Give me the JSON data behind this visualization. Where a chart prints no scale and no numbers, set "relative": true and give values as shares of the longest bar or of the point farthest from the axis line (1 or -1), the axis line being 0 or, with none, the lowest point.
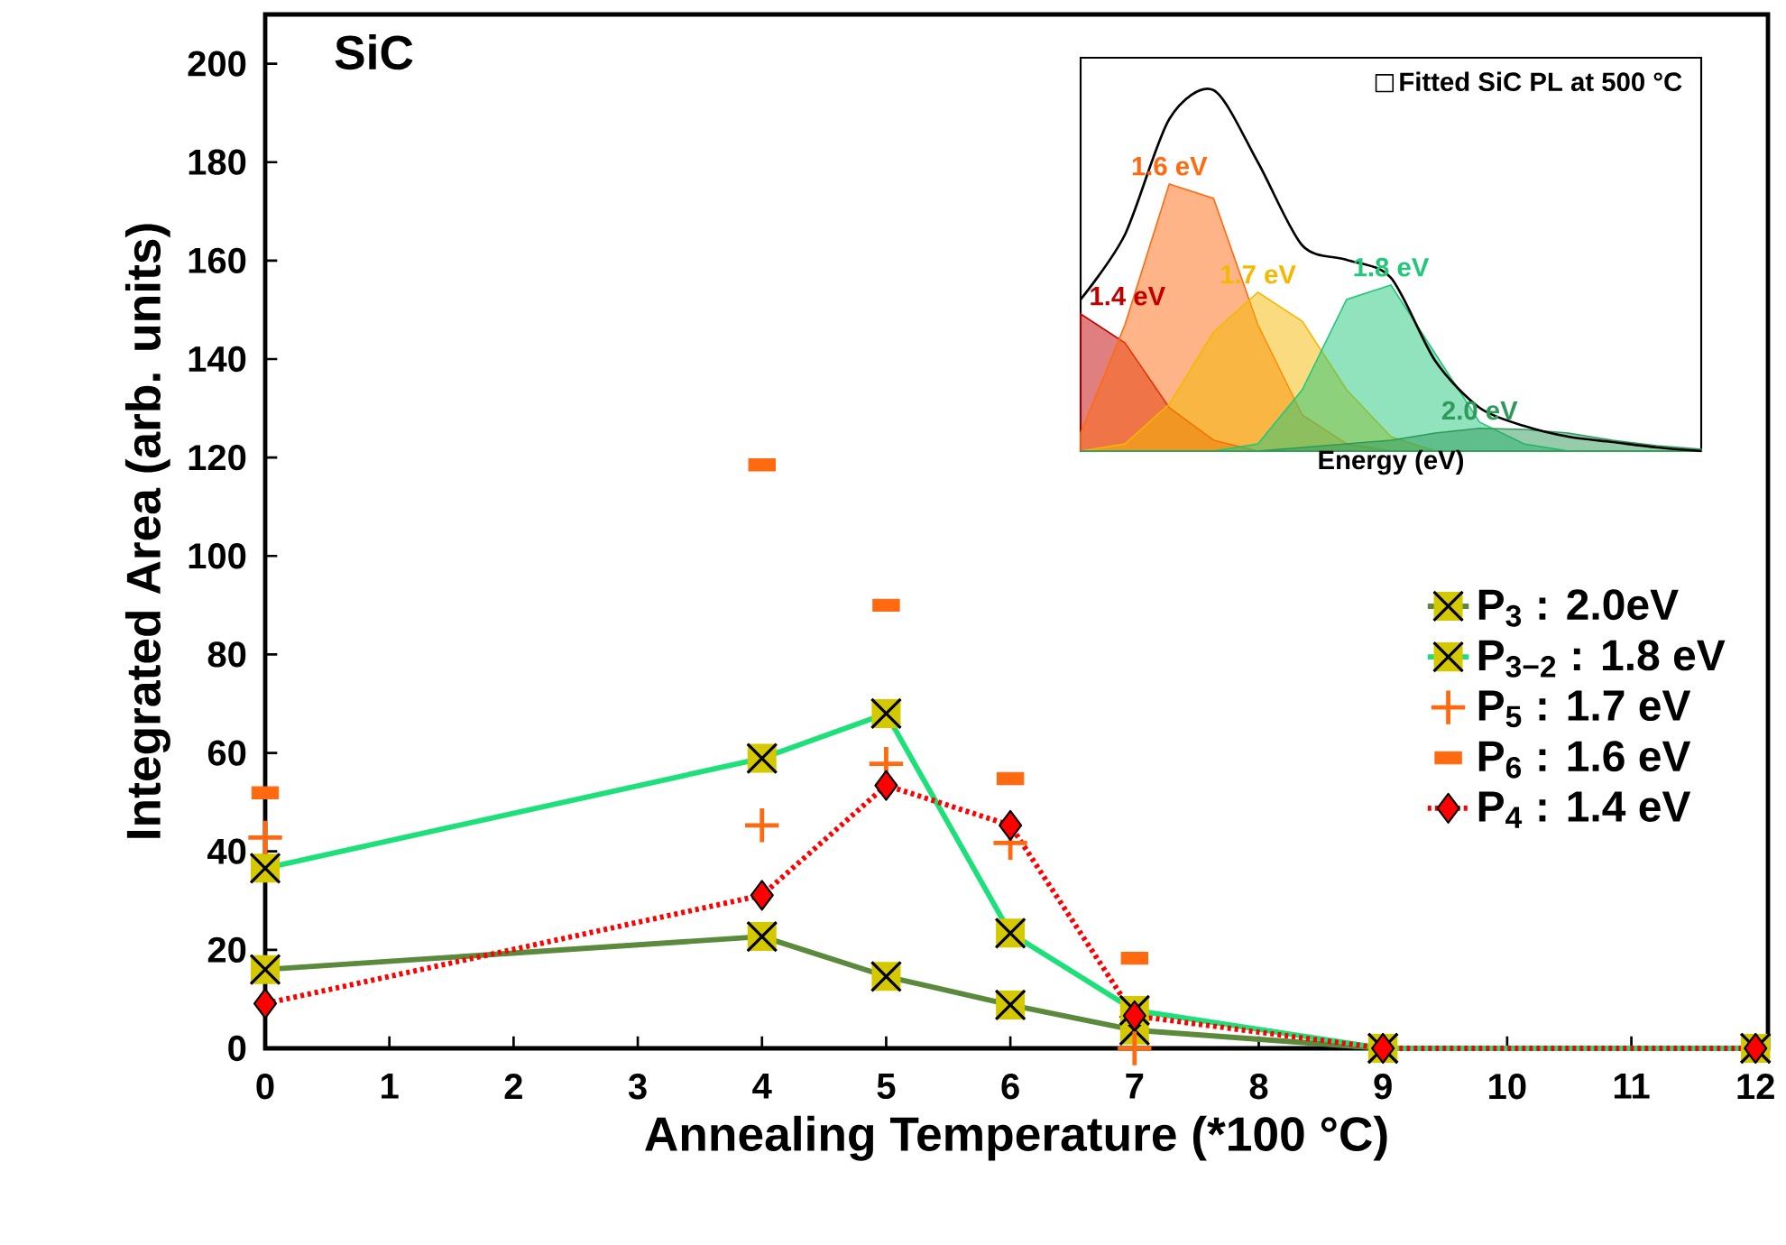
{
  "chart_data": [
    {
      "type": "line",
      "title": "SiC",
      "xlabel": "Annealing Temperature (*100 °C)",
      "ylabel": "Integrated Area (arb. units)",
      "x": [
        0,
        4,
        5,
        6,
        7,
        9,
        12
      ],
      "xlim": [
        0,
        12.1
      ],
      "xticks": [
        0,
        1,
        2,
        3,
        4,
        5,
        6,
        7,
        8,
        9,
        10,
        11,
        12
      ],
      "ylim": [
        0,
        210
      ],
      "yticks": [
        0,
        20,
        40,
        60,
        80,
        100,
        120,
        140,
        160,
        180,
        200
      ],
      "legend": "right",
      "series": [
        {
          "name": "P$_{3}$ : 2.0eV",
          "type": "line",
          "color": "#5b8a3c",
          "marker": "square",
          "line_style": "solid",
          "values": [
            16,
            22.7,
            14.6,
            8.8,
            3.7,
            0,
            0
          ]
        },
        {
          "name": "P$_{3−2}$ : 1.8 eV",
          "type": "line",
          "color": "#1ee07a",
          "marker": "square",
          "line_style": "solid",
          "values": [
            36.6,
            58.9,
            68,
            23.4,
            7.7,
            0,
            0
          ]
        },
        {
          "name": "P$_{5}$ : 1.7 eV",
          "type": "scatter",
          "color": "#ff6a10",
          "marker": "cross",
          "values": [
            42.8,
            45.3,
            57.8,
            41.7,
            0,
            null,
            null
          ]
        },
        {
          "name": "P$_{6}$ : 1.6 eV",
          "type": "scatter",
          "color": "#ff6a10",
          "marker": "square",
          "values": [
            51.9,
            118.5,
            90,
            54.8,
            18.3,
            null,
            null
          ]
        },
        {
          "name": "P$_{4}$ : 1.4 eV",
          "type": "line",
          "color": "#ff0000",
          "marker": "diamond",
          "line_style": "dotted",
          "values": [
            9.1,
            31.1,
            53.4,
            45.3,
            6.6,
            0,
            0
          ]
        }
      ]
    },
    {
      "type": "area",
      "relative": true,
      "xlabel": "Energy (eV)",
      "legend": "top right",
      "categories": [
        null,
        null,
        null,
        null,
        null,
        null,
        null,
        null,
        null,
        null,
        null,
        null,
        null,
        null,
        null
      ],
      "series": [
        {
          "name": "1.4 eV",
          "color": "#c00000",
          "values": [
            0.38,
            0.3,
            0.12,
            0.03,
            0,
            0,
            0,
            0,
            0,
            0,
            0,
            0,
            0,
            0,
            0
          ]
        },
        {
          "name": "1.6 eV",
          "color": "#ff6a10",
          "values": [
            0.05,
            0.35,
            0.74,
            0.7,
            0.35,
            0.1,
            0.02,
            0,
            0,
            0,
            0,
            0,
            0,
            0,
            0
          ]
        },
        {
          "name": "1.7 eV",
          "color": "#f5b800",
          "values": [
            0,
            0.02,
            0.13,
            0.33,
            0.44,
            0.36,
            0.17,
            0.04,
            0,
            0,
            0,
            0,
            0,
            0,
            0
          ]
        },
        {
          "name": "1.8 eV",
          "color": "#22c87a",
          "values": [
            0,
            0,
            0,
            0,
            0.02,
            0.17,
            0.42,
            0.46,
            0.27,
            0.08,
            0.02,
            0,
            0,
            0,
            0
          ]
        },
        {
          "name": "2.0 eV",
          "color": "#2e9a5a",
          "values": [
            0,
            0,
            0,
            0,
            0,
            0.01,
            0.02,
            0.03,
            0.05,
            0.063,
            0.06,
            0.05,
            0.03,
            0.015,
            0.005
          ]
        },
        {
          "name": "Fitted SiC PL at 500 °C",
          "type": "line",
          "color": "#000000",
          "values": [
            0.42,
            0.6,
            0.92,
            1,
            0.8,
            0.57,
            0.53,
            0.48,
            0.25,
            0.12,
            0.07,
            0.04,
            0.025,
            0.01,
            0
          ]
        }
      ]
    }
  ]
}
